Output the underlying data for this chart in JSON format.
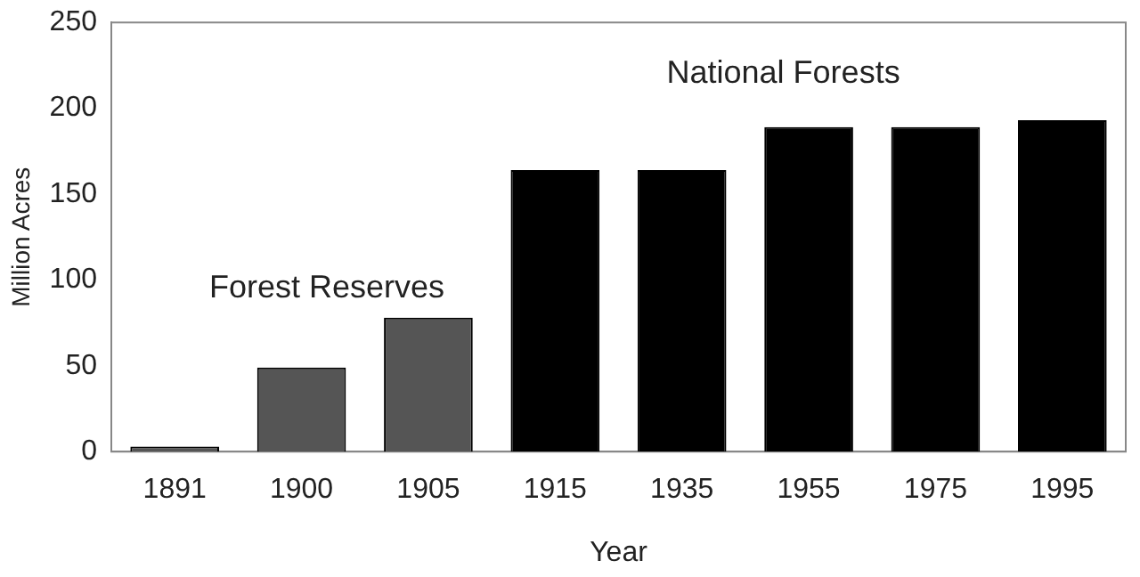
{
  "chart_data": {
    "type": "bar",
    "xlabel": "Year",
    "ylabel": "Million Acres",
    "categories": [
      "1891",
      "1900",
      "1905",
      "1915",
      "1935",
      "1955",
      "1975",
      "1995"
    ],
    "values": [
      3,
      49,
      78,
      164,
      164,
      189,
      189,
      193
    ],
    "colors": [
      "#555555",
      "#555555",
      "#555555",
      "#000000",
      "#000000",
      "#000000",
      "#000000",
      "#000000"
    ],
    "ylim": [
      0,
      250
    ],
    "yticks": [
      0,
      50,
      100,
      150,
      200,
      250
    ],
    "grid": false,
    "legend": false,
    "annotations": [
      "Forest Reserves",
      "National Forests"
    ]
  }
}
